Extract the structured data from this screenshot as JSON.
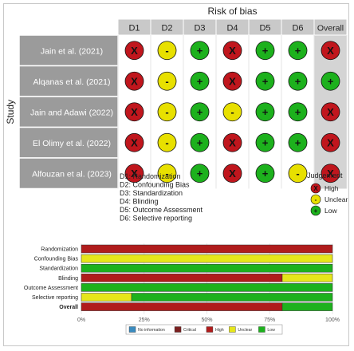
{
  "traffic_light": {
    "title": "Risk of bias",
    "y_label": "Study",
    "domains": [
      "D1",
      "D2",
      "D3",
      "D4",
      "D5",
      "D6",
      "Overall"
    ],
    "studies": [
      {
        "name": "Jain et al. (2021)",
        "judgements": [
          "High",
          "Unclear",
          "Low",
          "High",
          "Low",
          "Low",
          "High"
        ]
      },
      {
        "name": "Alqanas et al. (2021)",
        "judgements": [
          "High",
          "Unclear",
          "Low",
          "High",
          "Low",
          "Low",
          "Low"
        ]
      },
      {
        "name": "Jain and Adawi (2022)",
        "judgements": [
          "High",
          "Unclear",
          "Low",
          "Unclear",
          "Low",
          "Low",
          "High"
        ]
      },
      {
        "name": "El Olimy et al. (2022)",
        "judgements": [
          "High",
          "Unclear",
          "Low",
          "High",
          "Low",
          "Low",
          "High"
        ]
      },
      {
        "name": "Alfouzan et al. (2023)",
        "judgements": [
          "High",
          "Unclear",
          "Low",
          "High",
          "Low",
          "Unclear",
          "High"
        ]
      }
    ],
    "domain_key": [
      "D1: Randomization",
      "D2: Confounding Bias",
      "D3: Standardization",
      "D4: Blinding",
      "D5: Outcome Assessment",
      "D6: Selective reporting"
    ],
    "judgement_legend": {
      "title": "Judgement",
      "items": [
        {
          "label": "High",
          "symbol": "X",
          "color": "#c0161d"
        },
        {
          "label": "Unclear",
          "symbol": "-",
          "color": "#e8e000"
        },
        {
          "label": "Low",
          "symbol": "+",
          "color": "#1db11d"
        }
      ]
    }
  },
  "chart_data": {
    "type": "bar",
    "orientation": "horizontal",
    "stacked": true,
    "categories": [
      "Randomization",
      "Confounding Bias",
      "Standardization",
      "Blinding",
      "Outcome Assessment",
      "Selective reporting",
      "Overall"
    ],
    "series": [
      {
        "name": "No information",
        "color": "#3a8bbf",
        "values": [
          0,
          0,
          0,
          0,
          0,
          0,
          0
        ]
      },
      {
        "name": "Critical",
        "color": "#7a1f1f",
        "values": [
          0,
          0,
          0,
          0,
          0,
          0,
          0
        ]
      },
      {
        "name": "High",
        "color": "#b01c1c",
        "values": [
          100,
          0,
          0,
          80,
          0,
          0,
          80
        ]
      },
      {
        "name": "Unclear",
        "color": "#e6e61a",
        "values": [
          0,
          100,
          0,
          20,
          0,
          20,
          0
        ]
      },
      {
        "name": "Low",
        "color": "#1db11d",
        "values": [
          0,
          0,
          100,
          0,
          100,
          80,
          20
        ]
      }
    ],
    "x_ticks": [
      "0%",
      "25%",
      "50%",
      "75%",
      "100%"
    ],
    "xlim": [
      0,
      100
    ],
    "legend_position": "bottom"
  }
}
